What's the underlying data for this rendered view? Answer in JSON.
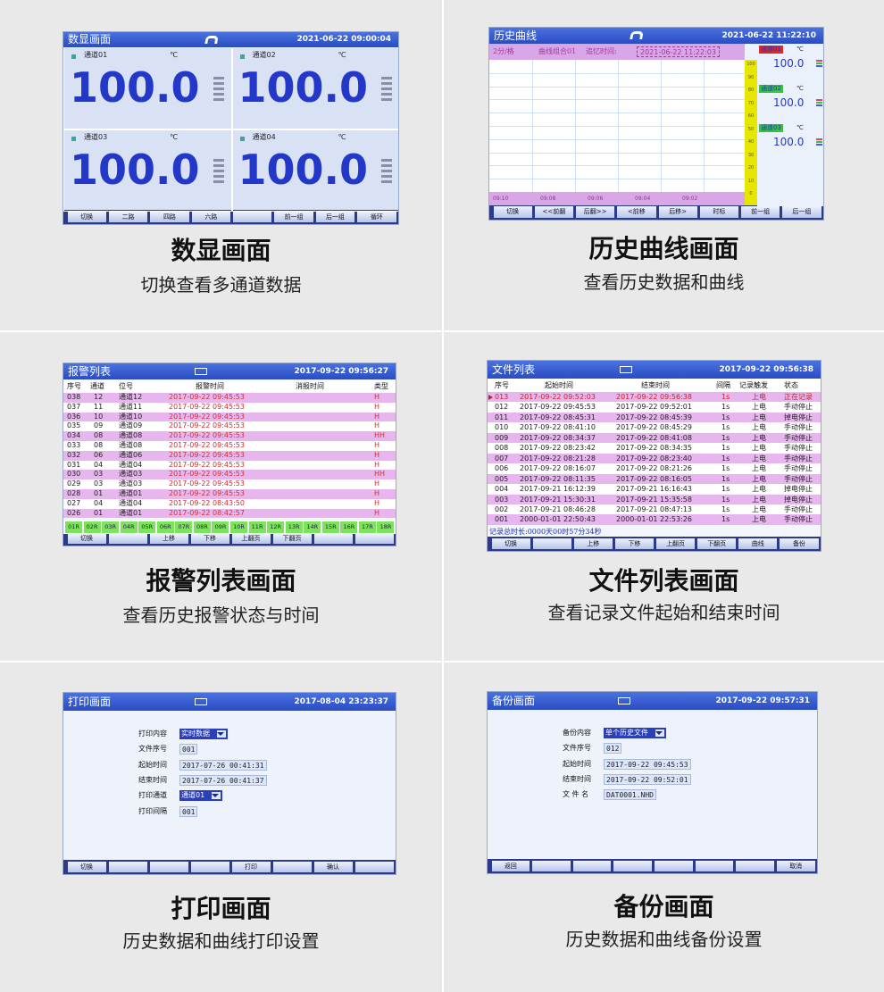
{
  "display_screen": {
    "header": {
      "title": "数显画面",
      "datetime": "2021-06-22 09:00:04"
    },
    "channels": [
      {
        "name": "通道01",
        "unit": "℃",
        "value": "100.0"
      },
      {
        "name": "通道02",
        "unit": "℃",
        "value": "100.0"
      },
      {
        "name": "通道03",
        "unit": "℃",
        "value": "100.0"
      },
      {
        "name": "通道04",
        "unit": "℃",
        "value": "100.0"
      }
    ],
    "buttons": [
      "切换",
      "二路",
      "四路",
      "六路",
      null,
      "前一组",
      "后一组",
      "循环"
    ],
    "caption": {
      "title": "数显画面",
      "subtitle": "切换查看多通道数据"
    }
  },
  "history_screen": {
    "header": {
      "title": "历史曲线",
      "datetime": "2021-06-22 11:22:10"
    },
    "toolbar": {
      "interval": "2分/格",
      "group": "曲线组合01",
      "recall_label": "追忆时间:",
      "recall_time": "2021-06-22 11:22:03"
    },
    "time_labels": [
      "09:10",
      "09:08",
      "09:06",
      "09:04",
      "09:02"
    ],
    "scale": [
      "100",
      "90",
      "80",
      "70",
      "60",
      "50",
      "40",
      "30",
      "20",
      "10",
      "0"
    ],
    "channels": [
      {
        "name": "通道01",
        "unit": "℃",
        "value": "100.0"
      },
      {
        "name": "通道02",
        "unit": "℃",
        "value": "100.0"
      },
      {
        "name": "通道03",
        "unit": "℃",
        "value": "100.0"
      }
    ],
    "buttons": [
      "切换",
      "<<前翻",
      "后翻>>",
      "<前移",
      "后移>",
      "时标",
      "前一组",
      "后一组"
    ],
    "caption": {
      "title": "历史曲线画面",
      "subtitle": "查看历史数据和曲线"
    }
  },
  "alarm_screen": {
    "header": {
      "title": "报警列表",
      "datetime": "2017-09-22 09:56:27"
    },
    "columns": [
      "序号",
      "通道",
      "位号",
      "报警时间",
      "消报时间",
      "类型"
    ],
    "rows": [
      [
        "038",
        "12",
        "通道12",
        "2017-09-22 09:45:53",
        null,
        "H"
      ],
      [
        "037",
        "11",
        "通道11",
        "2017-09-22 09:45:53",
        null,
        "H"
      ],
      [
        "036",
        "10",
        "通道10",
        "2017-09-22 09:45:53",
        null,
        "H"
      ],
      [
        "035",
        "09",
        "通道09",
        "2017-09-22 09:45:53",
        null,
        "H"
      ],
      [
        "034",
        "08",
        "通道08",
        "2017-09-22 09:45:53",
        null,
        "HH"
      ],
      [
        "033",
        "08",
        "通道08",
        "2017-09-22 09:45:53",
        null,
        "H"
      ],
      [
        "032",
        "06",
        "通道06",
        "2017-09-22 09:45:53",
        null,
        "H"
      ],
      [
        "031",
        "04",
        "通道04",
        "2017-09-22 09:45:53",
        null,
        "H"
      ],
      [
        "030",
        "03",
        "通道03",
        "2017-09-22 09:45:53",
        null,
        "HH"
      ],
      [
        "029",
        "03",
        "通道03",
        "2017-09-22 09:45:53",
        null,
        "H"
      ],
      [
        "028",
        "01",
        "通道01",
        "2017-09-22 09:45:53",
        null,
        "H"
      ],
      [
        "027",
        "04",
        "通道04",
        "2017-09-22 08:43:50",
        null,
        "H"
      ],
      [
        "026",
        "01",
        "通道01",
        "2017-09-22 08:42:57",
        null,
        "H"
      ]
    ],
    "channel_tags": [
      "01R",
      "02R",
      "03R",
      "04R",
      "05R",
      "06R",
      "07R",
      "08R",
      "09R",
      "10R",
      "11R",
      "12R",
      "13R",
      "14R",
      "15R",
      "16R",
      "17R",
      "18R"
    ],
    "buttons": [
      "切换",
      null,
      "上移",
      "下移",
      "上翻页",
      "下翻页",
      null,
      null
    ],
    "caption": {
      "title": "报警列表画面",
      "subtitle": "查看历史报警状态与时间"
    }
  },
  "file_screen": {
    "header": {
      "title": "文件列表",
      "datetime": "2017-09-22 09:56:38"
    },
    "columns": [
      "序号",
      "起始时间",
      "结束时间",
      "间隔",
      "记录触发",
      "状态"
    ],
    "rows": [
      [
        "013",
        "2017-09-22 09:52:03",
        "2017-09-22 09:56:38",
        "1s",
        "上电",
        "正在记录"
      ],
      [
        "012",
        "2017-09-22 09:45:53",
        "2017-09-22 09:52:01",
        "1s",
        "上电",
        "手动停止"
      ],
      [
        "011",
        "2017-09-22 08:45:31",
        "2017-09-22 08:45:39",
        "1s",
        "上电",
        "掉电停止"
      ],
      [
        "010",
        "2017-09-22 08:41:10",
        "2017-09-22 08:45:29",
        "1s",
        "上电",
        "手动停止"
      ],
      [
        "009",
        "2017-09-22 08:34:37",
        "2017-09-22 08:41:08",
        "1s",
        "上电",
        "手动停止"
      ],
      [
        "008",
        "2017-09-22 08:23:42",
        "2017-09-22 08:34:35",
        "1s",
        "上电",
        "手动停止"
      ],
      [
        "007",
        "2017-09-22 08:21:28",
        "2017-09-22 08:23:40",
        "1s",
        "上电",
        "手动停止"
      ],
      [
        "006",
        "2017-09-22 08:16:07",
        "2017-09-22 08:21:26",
        "1s",
        "上电",
        "手动停止"
      ],
      [
        "005",
        "2017-09-22 08:11:35",
        "2017-09-22 08:16:05",
        "1s",
        "上电",
        "手动停止"
      ],
      [
        "004",
        "2017-09-21 16:12:39",
        "2017-09-21 16:16:43",
        "1s",
        "上电",
        "掉电停止"
      ],
      [
        "003",
        "2017-09-21 15:30:31",
        "2017-09-21 15:35:58",
        "1s",
        "上电",
        "掉电停止"
      ],
      [
        "002",
        "2017-09-21 08:46:28",
        "2017-09-21 08:47:13",
        "1s",
        "上电",
        "手动停止"
      ],
      [
        "001",
        "2000-01-01 22:50:43",
        "2000-01-01 22:53:26",
        "1s",
        "上电",
        "手动停止"
      ]
    ],
    "summary": "记录总时长:0000天00时57分34秒",
    "buttons": [
      "切换",
      null,
      "上移",
      "下移",
      "上翻页",
      "下翻页",
      "曲线",
      "备份"
    ],
    "caption": {
      "title": "文件列表画面",
      "subtitle": "查看记录文件起始和结束时间"
    }
  },
  "print_screen": {
    "header": {
      "title": "打印画面",
      "datetime": "2017-08-04 23:23:37"
    },
    "fields": [
      {
        "label": "打印内容",
        "value": "实时数据"
      },
      {
        "label": "文件序号",
        "value": "001"
      },
      {
        "label": "起始时间",
        "value": "2017-07-26 00:41:31"
      },
      {
        "label": "结束时间",
        "value": "2017-07-26 00:41:37"
      },
      {
        "label": "打印通道",
        "value": "通道01"
      },
      {
        "label": "打印间隔",
        "value": "001"
      }
    ],
    "buttons": [
      "切换",
      null,
      null,
      null,
      "打印",
      null,
      "确认",
      null
    ],
    "caption": {
      "title": "打印画面",
      "subtitle": "历史数据和曲线打印设置"
    }
  },
  "backup_screen": {
    "header": {
      "title": "备份画面",
      "datetime": "2017-09-22 09:57:31"
    },
    "fields": [
      {
        "label": "备份内容",
        "value": "单个历史文件"
      },
      {
        "label": "文件序号",
        "value": "012"
      },
      {
        "label": "起始时间",
        "value": "2017-09-22 09:45:53"
      },
      {
        "label": "结束时间",
        "value": "2017-09-22 09:52:01"
      },
      {
        "label": "文 件 名",
        "value": "DAT0001.NHD"
      }
    ],
    "buttons": [
      "返回",
      null,
      null,
      null,
      null,
      null,
      null,
      "取消"
    ],
    "caption": {
      "title": "备份画面",
      "subtitle": "历史数据和曲线备份设置"
    }
  }
}
